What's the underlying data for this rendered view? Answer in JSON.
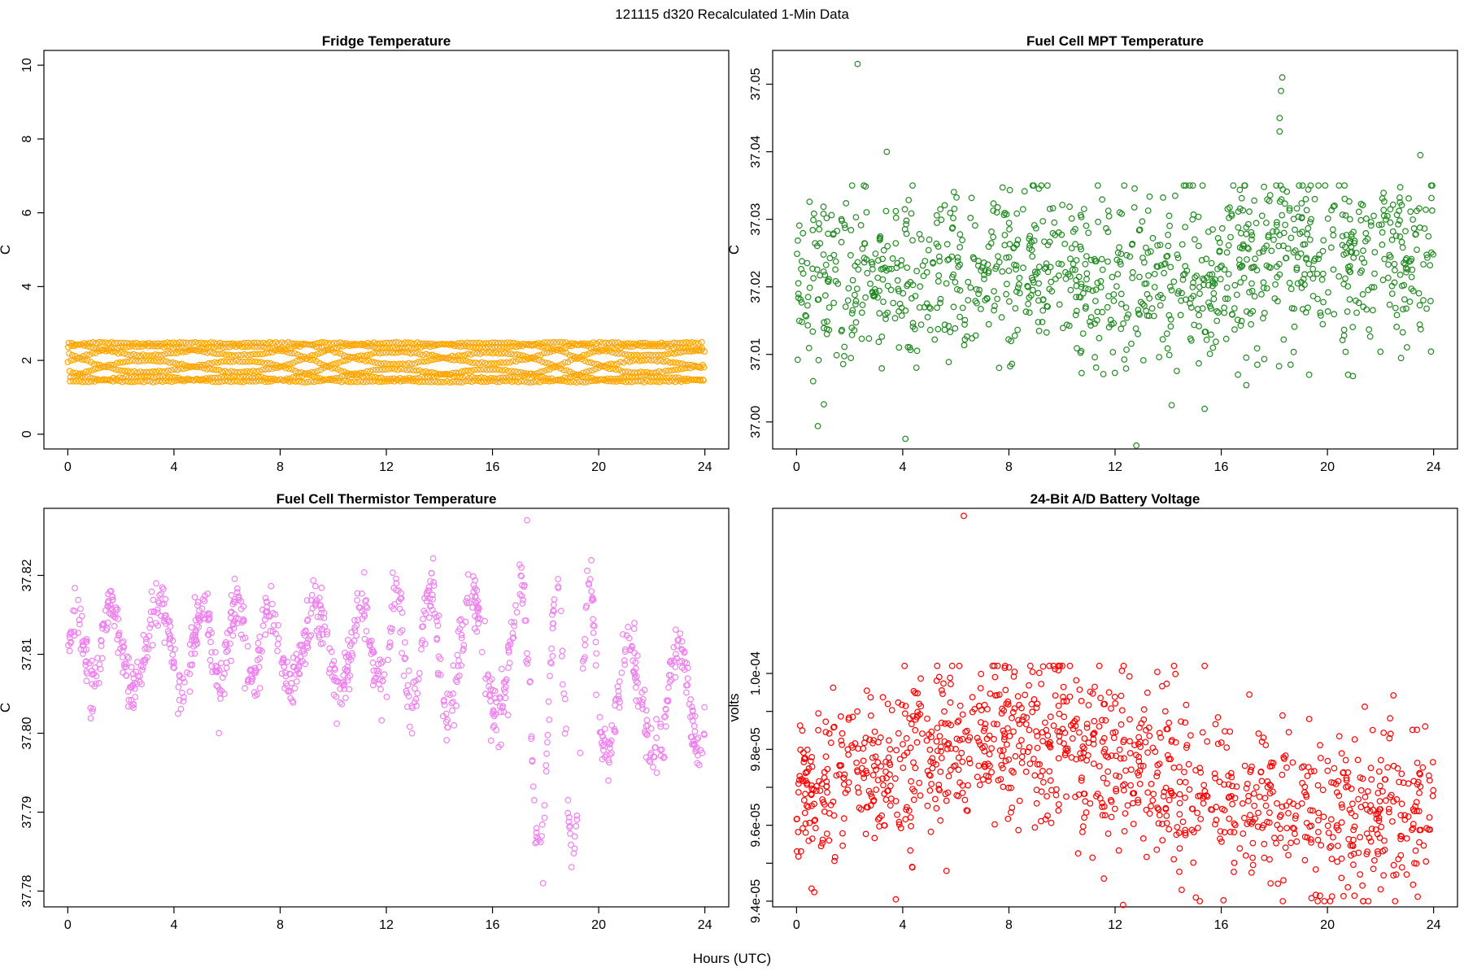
{
  "figure": {
    "suptitle": "121115   d320   Recalculated 1-Min Data",
    "xlabel": "Hours (UTC)"
  },
  "chart_data": [
    {
      "type": "scatter",
      "title": "Fridge Temperature",
      "ylabel": "C",
      "xlim": [
        -0.9,
        24.9
      ],
      "ylim": [
        -0.4,
        10.4
      ],
      "xticks": [
        0,
        4,
        8,
        12,
        16,
        20,
        24
      ],
      "yticks": [
        0,
        2,
        4,
        6,
        8,
        10
      ],
      "ytick_labels": [
        "0",
        "2",
        "4",
        "6",
        "8",
        "10"
      ],
      "color": "#FFA500",
      "series": [
        {
          "x_range": [
            0,
            24
          ],
          "sampling": "1-min",
          "y_range": [
            1.4,
            2.5
          ],
          "pattern": "dense oscillation between 1.4 and 2.5 (interleaved band)"
        }
      ]
    },
    {
      "type": "scatter",
      "title": "Fuel Cell MPT Temperature",
      "ylabel": "C",
      "xlim": [
        -0.9,
        24.9
      ],
      "ylim": [
        36.996,
        37.055
      ],
      "xticks": [
        0,
        4,
        8,
        12,
        16,
        20,
        24
      ],
      "yticks": [
        37.0,
        37.01,
        37.02,
        37.03,
        37.04,
        37.05
      ],
      "ytick_labels": [
        "37.00",
        "37.01",
        "37.02",
        "37.03",
        "37.04",
        "37.05"
      ],
      "color": "#228B22",
      "series": [
        {
          "x_range": [
            0,
            24
          ],
          "sampling": "1-min",
          "center": 37.021,
          "spread": 0.006,
          "outliers": [
            {
              "x": 2.3,
              "y": 37.053
            },
            {
              "x": 3.4,
              "y": 37.04
            },
            {
              "x": 18.3,
              "y": 37.051
            },
            {
              "x": 18.25,
              "y": 37.049
            },
            {
              "x": 18.2,
              "y": 37.045
            },
            {
              "x": 18.2,
              "y": 37.043
            },
            {
              "x": 23.5,
              "y": 37.0395
            },
            {
              "x": 12.8,
              "y": 36.9965
            },
            {
              "x": 4.1,
              "y": 36.9975
            }
          ]
        }
      ]
    },
    {
      "type": "scatter",
      "title": "Fuel Cell Thermistor Temperature",
      "ylabel": "C",
      "xlim": [
        -0.9,
        24.9
      ],
      "ylim": [
        37.778,
        37.8285
      ],
      "xticks": [
        0,
        4,
        8,
        12,
        16,
        20,
        24
      ],
      "yticks": [
        37.78,
        37.79,
        37.8,
        37.81,
        37.82
      ],
      "ytick_labels": [
        "37.78",
        "37.79",
        "37.80",
        "37.81",
        "37.82"
      ],
      "color": "#EE82EE",
      "series": [
        {
          "x_range": [
            0,
            24
          ],
          "sampling": "1-min",
          "pattern": "oscillating around 37.810, larger dips after 17h down to ~37.781",
          "max_point": {
            "x": 17.3,
            "y": 37.827
          },
          "min_point": {
            "x": 17.9,
            "y": 37.781
          }
        }
      ]
    },
    {
      "type": "scatter",
      "title": "24-Bit A/D Battery Voltage",
      "ylabel": "volts",
      "xlim": [
        -0.9,
        24.9
      ],
      "ylim": [
        9.385e-05,
        0.00010435
      ],
      "xticks": [
        0,
        4,
        8,
        12,
        16,
        20,
        24
      ],
      "yticks": [
        9.4e-05,
        9.5e-05,
        9.6e-05,
        9.7e-05,
        9.8e-05,
        9.9e-05,
        0.0001
      ],
      "ytick_labels": [
        "9.4e-05",
        "",
        "9.6e-05",
        "",
        "9.8e-05",
        "",
        "1.0e-04"
      ],
      "color": "#FF0000",
      "series": [
        {
          "x_range": [
            0,
            24
          ],
          "sampling": "1-min",
          "center": 9.72e-05,
          "spread": 1.2e-06,
          "max_point": {
            "x": 6.3,
            "y": 0.00010415
          },
          "min_point": {
            "x": 12.3,
            "y": 9.39e-05
          }
        }
      ]
    }
  ]
}
